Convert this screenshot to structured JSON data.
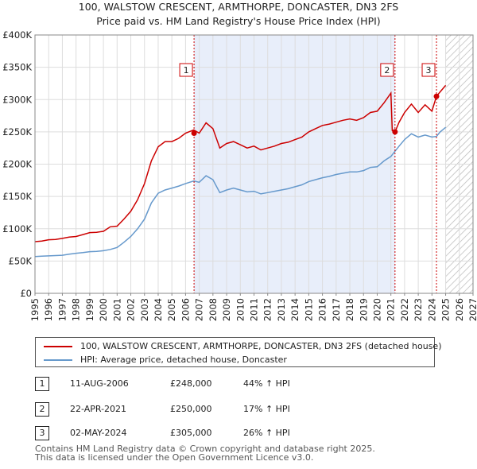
{
  "chart_data": {
    "type": "line",
    "title": "100, WALSTOW CRESCENT, ARMTHORPE, DONCASTER, DN3 2FS",
    "subtitle": "Price paid vs. HM Land Registry's House Price Index (HPI)",
    "xlim": [
      1995,
      2027
    ],
    "ylim": [
      0,
      400000
    ],
    "y_ticks": [
      0,
      50000,
      100000,
      150000,
      200000,
      250000,
      300000,
      350000,
      400000
    ],
    "y_tick_labels": [
      "£0",
      "£50K",
      "£100K",
      "£150K",
      "£200K",
      "£250K",
      "£300K",
      "£350K",
      "£400K"
    ],
    "x_ticks": [
      "1995",
      "1996",
      "1997",
      "1998",
      "1999",
      "2000",
      "2001",
      "2002",
      "2003",
      "2004",
      "2005",
      "2006",
      "2007",
      "2008",
      "2009",
      "2010",
      "2011",
      "2012",
      "2013",
      "2014",
      "2015",
      "2016",
      "2017",
      "2018",
      "2019",
      "2020",
      "2021",
      "2022",
      "2023",
      "2024",
      "2025",
      "2026",
      "2027"
    ],
    "grid": true,
    "hatched_future_from": 2025.0,
    "series": [
      {
        "name": "100, WALSTOW CRESCENT, ARMTHORPE, DONCASTER, DN3 2FS (detached house)",
        "color": "#cc0000",
        "x": [
          1995.0,
          1995.5,
          1996.0,
          1996.5,
          1997.0,
          1997.5,
          1998.0,
          1998.5,
          1999.0,
          1999.5,
          2000.0,
          2000.5,
          2001.0,
          2001.5,
          2002.0,
          2002.5,
          2003.0,
          2003.5,
          2004.0,
          2004.5,
          2005.0,
          2005.5,
          2006.0,
          2006.6,
          2007.0,
          2007.5,
          2008.0,
          2008.5,
          2009.0,
          2009.5,
          2010.0,
          2010.5,
          2011.0,
          2011.5,
          2012.0,
          2012.5,
          2013.0,
          2013.5,
          2014.0,
          2014.5,
          2015.0,
          2015.5,
          2016.0,
          2016.5,
          2017.0,
          2017.5,
          2018.0,
          2018.5,
          2019.0,
          2019.5,
          2020.0,
          2020.5,
          2021.0,
          2021.1,
          2021.3,
          2021.6,
          2022.0,
          2022.5,
          2023.0,
          2023.5,
          2024.0,
          2024.33,
          2024.6,
          2025.0
        ],
        "values": [
          80000,
          81000,
          83000,
          83500,
          85000,
          87000,
          88000,
          91000,
          94000,
          94500,
          96000,
          103000,
          104000,
          115000,
          127000,
          145000,
          170000,
          205000,
          227000,
          235000,
          235000,
          240000,
          248000,
          253000,
          248000,
          264000,
          255000,
          225000,
          232000,
          235000,
          230000,
          225000,
          228000,
          222000,
          225000,
          228000,
          232000,
          234000,
          238000,
          242000,
          250000,
          255000,
          260000,
          262000,
          265000,
          268000,
          270000,
          268000,
          272000,
          280000,
          282000,
          295000,
          310000,
          252000,
          250000,
          265000,
          280000,
          293000,
          280000,
          292000,
          282000,
          305000,
          312000,
          322000
        ]
      },
      {
        "name": "HPI: Average price, detached house, Doncaster",
        "color": "#6699cc",
        "x": [
          1995.0,
          1995.5,
          1996.0,
          1996.5,
          1997.0,
          1997.5,
          1998.0,
          1998.5,
          1999.0,
          1999.5,
          2000.0,
          2000.5,
          2001.0,
          2001.5,
          2002.0,
          2002.5,
          2003.0,
          2003.5,
          2004.0,
          2004.5,
          2005.0,
          2005.5,
          2006.0,
          2006.6,
          2007.0,
          2007.5,
          2008.0,
          2008.5,
          2009.0,
          2009.5,
          2010.0,
          2010.5,
          2011.0,
          2011.5,
          2012.0,
          2012.5,
          2013.0,
          2013.5,
          2014.0,
          2014.5,
          2015.0,
          2015.5,
          2016.0,
          2016.5,
          2017.0,
          2017.5,
          2018.0,
          2018.5,
          2019.0,
          2019.5,
          2020.0,
          2020.5,
          2021.0,
          2021.3,
          2021.6,
          2022.0,
          2022.5,
          2023.0,
          2023.5,
          2024.0,
          2024.33,
          2024.6,
          2025.0
        ],
        "values": [
          57000,
          57500,
          58000,
          58500,
          59000,
          60500,
          62000,
          63000,
          64500,
          65000,
          66000,
          68000,
          71000,
          79000,
          88000,
          100000,
          115000,
          140000,
          155000,
          160000,
          163000,
          166000,
          170000,
          174000,
          172000,
          182000,
          176000,
          156000,
          160000,
          163000,
          160000,
          157000,
          158000,
          154000,
          156000,
          158000,
          160000,
          162000,
          165000,
          168000,
          173000,
          176000,
          179000,
          181000,
          184000,
          186000,
          188000,
          188000,
          190000,
          195000,
          196000,
          205000,
          212000,
          220000,
          228000,
          238000,
          247000,
          242000,
          245000,
          242000,
          243000,
          250000,
          257000
        ]
      }
    ],
    "markers": [
      {
        "label": "1",
        "x": 2006.62,
        "value": 248000
      },
      {
        "label": "2",
        "x": 2021.3,
        "value": 250000
      },
      {
        "label": "3",
        "x": 2024.33,
        "value": 305000
      }
    ]
  },
  "legend": {
    "items": [
      {
        "label": "100, WALSTOW CRESCENT, ARMTHORPE, DONCASTER, DN3 2FS (detached house)",
        "color": "#cc0000"
      },
      {
        "label": "HPI: Average price, detached house, Doncaster",
        "color": "#6699cc"
      }
    ]
  },
  "transactions": [
    {
      "num": "1",
      "date": "11-AUG-2006",
      "price": "£248,000",
      "hpi": "44% ↑ HPI"
    },
    {
      "num": "2",
      "date": "22-APR-2021",
      "price": "£250,000",
      "hpi": "17% ↑ HPI"
    },
    {
      "num": "3",
      "date": "02-MAY-2024",
      "price": "£305,000",
      "hpi": "26% ↑ HPI"
    }
  ],
  "footer": {
    "line1": "Contains HM Land Registry data © Crown copyright and database right 2025.",
    "line2": "This data is licensed under the Open Government Licence v3.0."
  }
}
